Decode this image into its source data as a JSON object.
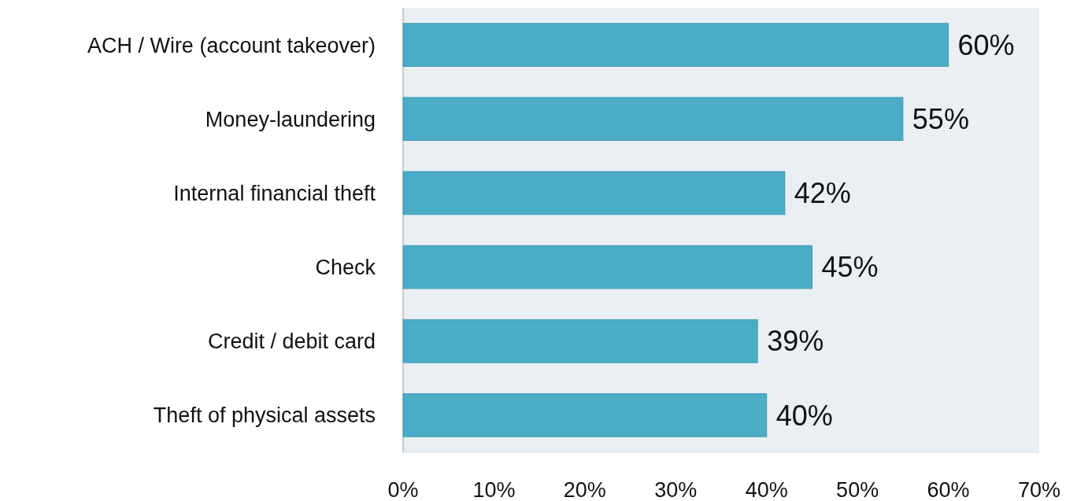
{
  "chart_data": {
    "type": "bar",
    "orientation": "horizontal",
    "categories": [
      "ACH / Wire (account takeover)",
      "Money-laundering",
      "Internal financial theft",
      "Check",
      "Credit / debit card",
      "Theft of physical assets"
    ],
    "values": [
      60,
      55,
      42,
      45,
      39,
      40
    ],
    "color": "#4bacc6",
    "value_labels": [
      "60%",
      "55%",
      "42%",
      "45%",
      "39%",
      "40%"
    ],
    "xlim": [
      0,
      70
    ],
    "xticks": [
      {
        "value": 0,
        "label": "0%"
      },
      {
        "value": 10,
        "label": "10%"
      },
      {
        "value": 20,
        "label": "20%"
      },
      {
        "value": 30,
        "label": "30%"
      },
      {
        "value": 40,
        "label": "40%"
      },
      {
        "value": 50,
        "label": "50%"
      },
      {
        "value": 60,
        "label": "60%"
      },
      {
        "value": 70,
        "label": "70%"
      }
    ],
    "grid": false
  }
}
